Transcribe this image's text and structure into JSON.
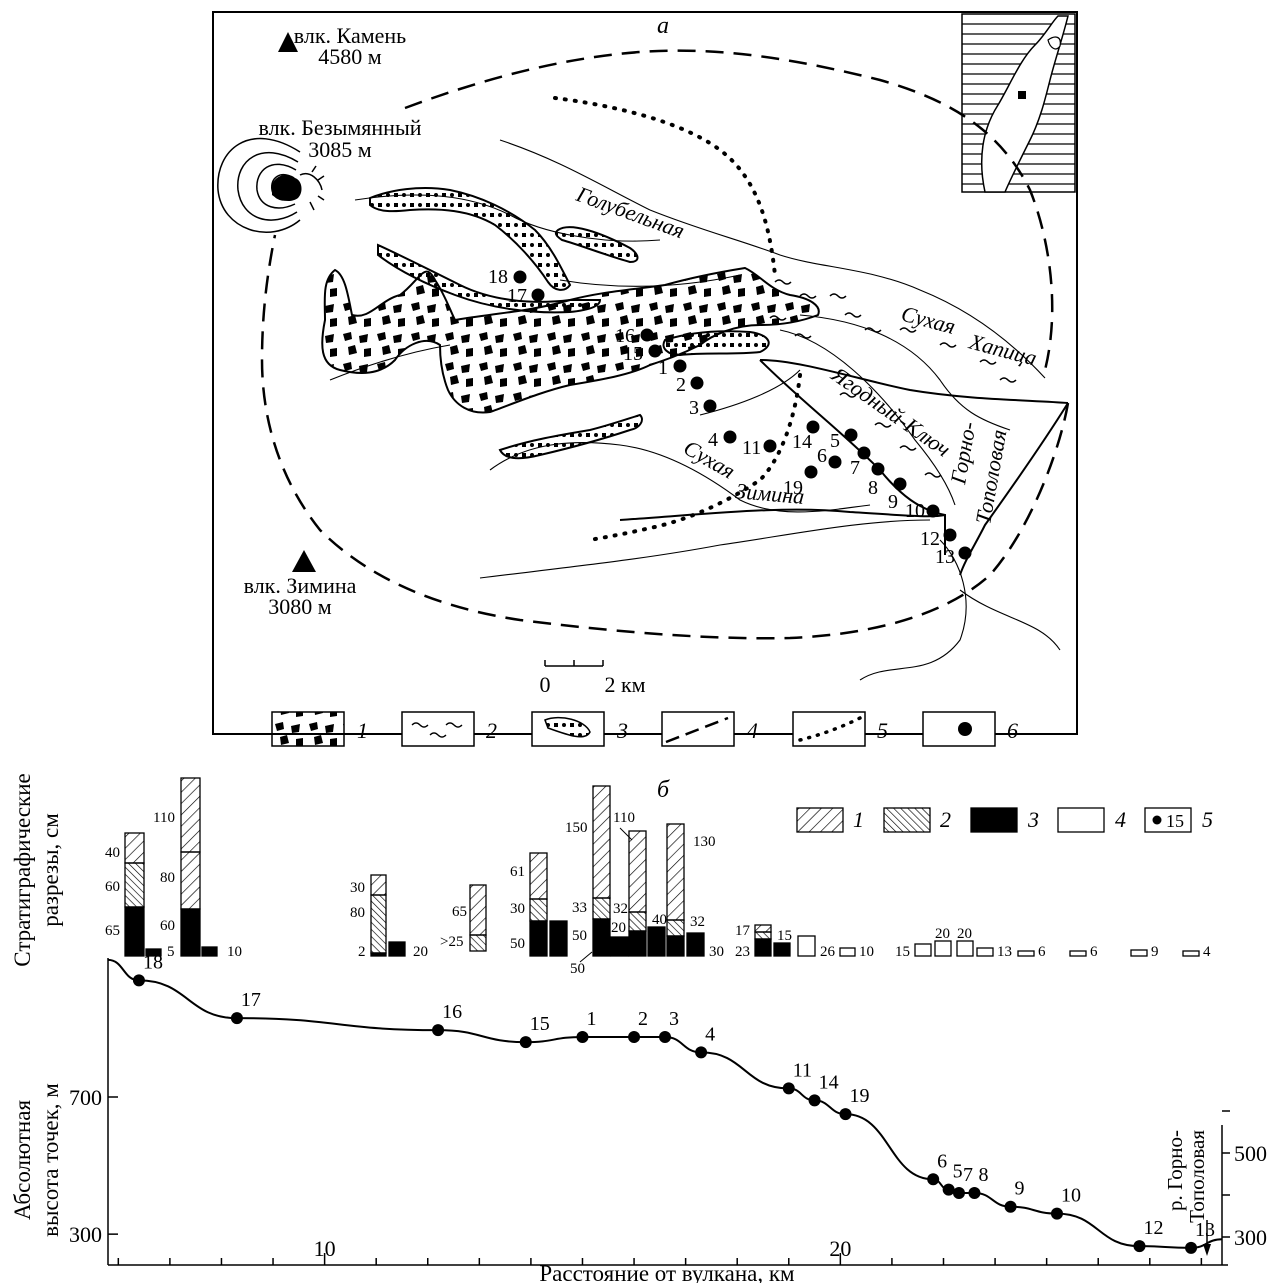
{
  "panel_a": {
    "label": "а",
    "volcanoes": [
      {
        "name": "влк. Камень",
        "height": "4580 м"
      },
      {
        "name": "влк. Безымянный",
        "height": "3085 м"
      },
      {
        "name": "влк. Зимина",
        "height": "3080 м"
      }
    ],
    "rivers": [
      "Голубельная",
      "Сухая",
      "Хапица",
      "Ягодный-Ключ",
      "Горно-",
      "Тополовая",
      "Сухая",
      "Зимина"
    ],
    "points": [
      "18",
      "17",
      "16",
      "15",
      "1",
      "2",
      "3",
      "4",
      "11",
      "14",
      "5",
      "6",
      "7",
      "19",
      "8",
      "9",
      "10",
      "12",
      "13"
    ],
    "scale": {
      "zero": "0",
      "end": "2 км"
    },
    "legend": [
      "1",
      "2",
      "3",
      "4",
      "5",
      "6"
    ]
  },
  "panel_b": {
    "label": "б",
    "legend": [
      "1",
      "2",
      "3",
      "4",
      "5"
    ],
    "legend_point": "15",
    "y_label_top_1": "Стратиграфические",
    "y_label_top_2": "разрезы, см",
    "y_label_bot_1": "Абсолютная",
    "y_label_bot_2": "высота точек, м",
    "x_label": "Расстояние от вулкана, км",
    "river_label_1": "р. Горно-",
    "river_label_2": "Тополовая"
  },
  "chart_data": {
    "type": "line",
    "xlabel": "Расстояние от вулкана, км",
    "ylabel": "Абсолютная высота точек, м",
    "x_ticks": [
      10,
      20
    ],
    "y_ticks_left": [
      300,
      700
    ],
    "y_ticks_right": [
      300,
      500
    ],
    "points": [
      {
        "id": "18",
        "x": 6.4,
        "y": 1040
      },
      {
        "id": "17",
        "x": 8.3,
        "y": 930
      },
      {
        "id": "16",
        "x": 12.2,
        "y": 895
      },
      {
        "id": "15",
        "x": 13.9,
        "y": 860
      },
      {
        "id": "1",
        "x": 15.0,
        "y": 875
      },
      {
        "id": "2",
        "x": 16.0,
        "y": 875
      },
      {
        "id": "3",
        "x": 16.6,
        "y": 875
      },
      {
        "id": "4",
        "x": 17.3,
        "y": 830
      },
      {
        "id": "11",
        "x": 19.0,
        "y": 725
      },
      {
        "id": "14",
        "x": 19.5,
        "y": 690
      },
      {
        "id": "19",
        "x": 20.1,
        "y": 650
      },
      {
        "id": "6",
        "x": 21.8,
        "y": 460
      },
      {
        "id": "5",
        "x": 22.1,
        "y": 430
      },
      {
        "id": "7",
        "x": 22.3,
        "y": 420
      },
      {
        "id": "8",
        "x": 22.6,
        "y": 420
      },
      {
        "id": "9",
        "x": 23.3,
        "y": 380
      },
      {
        "id": "10",
        "x": 24.2,
        "y": 360
      },
      {
        "id": "12",
        "x": 25.8,
        "y": 265
      },
      {
        "id": "13",
        "x": 26.8,
        "y": 260
      }
    ],
    "strat_labels": [
      "40",
      "60",
      "65",
      "5",
      "110",
      "80",
      "60",
      "10",
      "30",
      "80",
      "2",
      "20",
      "65",
      ">25",
      "61",
      "30",
      "50",
      "150",
      "33",
      "50",
      "50",
      "110",
      "20",
      "32",
      "40",
      "130",
      "32",
      "30",
      "17",
      "15",
      "23",
      "26",
      "10",
      "15",
      "20",
      "20",
      "13",
      "6",
      "6",
      "9",
      "4"
    ]
  }
}
